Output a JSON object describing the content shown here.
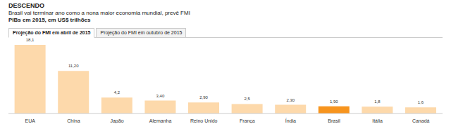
{
  "chart_data": {
    "type": "bar",
    "title": "DESCENDO",
    "subtitle": "Brasil vai terminar ano como a nona maior economia mundial, prevê FMI",
    "ylabel": "PIBs em 2015, em US$ trilhões",
    "annotations": [
      "Projeção do FMI em abril de 2015",
      "Projeção do FMI em outubro de 2015"
    ],
    "categories": [
      "EUA",
      "China",
      "Japão",
      "Alemanha",
      "Reino Unido",
      "França",
      "Índia",
      "Brasil",
      "Itália",
      "Canadá"
    ],
    "values": [
      18.1,
      11.2,
      4.2,
      3.4,
      2.9,
      2.5,
      2.3,
      1.9,
      1.8,
      1.6
    ],
    "value_labels": [
      "18,1",
      "11,20",
      "4,2",
      "3,40",
      "2,90",
      "2,5",
      "2,30",
      "1,90",
      "1,8",
      "1,6"
    ],
    "colors": [
      "#fdd9ab",
      "#fdd9ab",
      "#fdd9ab",
      "#fdd9ab",
      "#fdd9ab",
      "#fdd9ab",
      "#fdd9ab",
      "#f7941d",
      "#fdd9ab",
      "#fdd9ab"
    ],
    "data_labels": true,
    "tick_labels": "x",
    "grid": false
  }
}
